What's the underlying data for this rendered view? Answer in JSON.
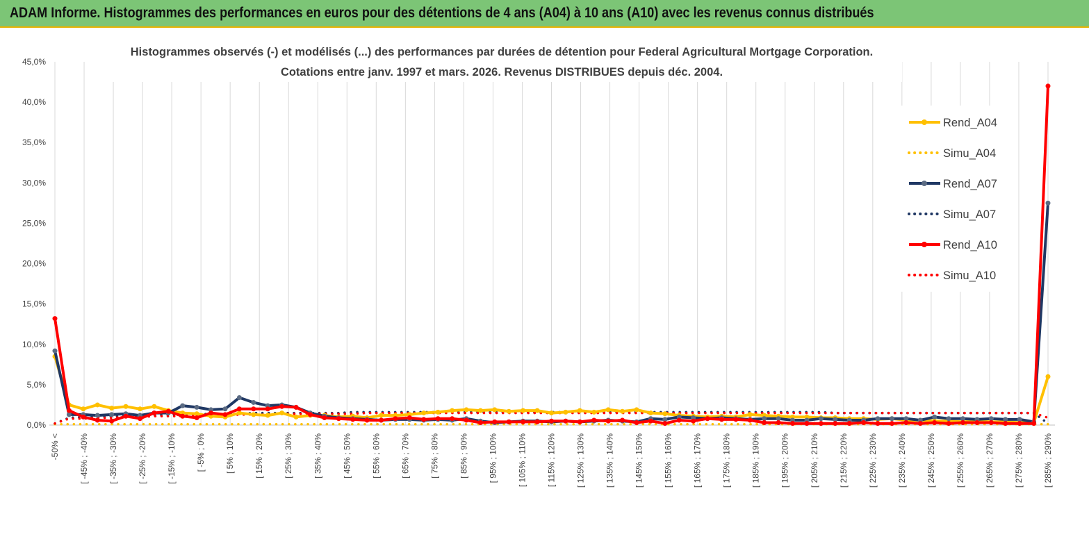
{
  "header": {
    "title": "ADAM Informe. Histogrammes des performances en euros pour des détentions de 4 ans (A04) à 10 ans (A10) avec les revenus connus distribués"
  },
  "colors": {
    "banner": "#7cc576",
    "banner_border": "#e8b100",
    "A04": "#ffc000",
    "A07": "#203864",
    "A10": "#ff0000"
  },
  "chart_data": {
    "type": "line",
    "title": [
      "Histogrammes observés (-) et modélisés (...) des performances par durées de détention pour Federal Agricultural Mortgage Corporation.",
      "Cotations entre janv. 1997 et mars. 2026. Revenus DISTRIBUES depuis déc. 2004."
    ],
    "ylim": [
      0,
      45
    ],
    "y_ticks": [
      "0,0%",
      "5,0%",
      "10,0%",
      "15,0%",
      "20,0%",
      "25,0%",
      "30,0%",
      "35,0%",
      "40,0%",
      "45,0%"
    ],
    "grid": "vertical",
    "legend_position": "right",
    "x_labels": [
      "-50% <",
      "[ -45% ; -40%",
      "[ -35% ; -30%",
      "[ -25% ; -20%",
      "[ -15% ; -10%",
      "[ -5% ; 0%",
      "[ 5% ; 10%",
      "[ 15% ; 20%",
      "[ 25% ; 30%",
      "[ 35% ; 40%",
      "[ 45% ; 50%",
      "[ 55% ; 60%",
      "[ 65% ; 70%",
      "[ 75% ; 80%",
      "[ 85% ; 90%",
      "[ 95% ; 100%",
      "[ 105% ; 110%",
      "[ 115% ; 120%",
      "[ 125% ; 130%",
      "[ 135% ; 140%",
      "[ 145% ; 150%",
      "[ 155% ; 160%",
      "[ 165% ; 170%",
      "[ 175% ; 180%",
      "[ 185% ; 190%",
      "[ 195% ; 200%",
      "[ 205% ; 210%",
      "[ 215% ; 220%",
      "[ 225% ; 230%",
      "[ 235% ; 240%",
      "[ 245% ; 250%",
      "[ 255% ; 260%",
      "[ 265% ; 270%",
      "[ 275% ; 280%",
      "[ 285% ; 290%"
    ],
    "series": [
      {
        "name": "Rend_A04",
        "style": "solid",
        "values": [
          8.5,
          2.5,
          2.0,
          2.5,
          2.1,
          2.3,
          2.0,
          2.3,
          1.8,
          1.5,
          1.4,
          1.1,
          1.0,
          1.5,
          1.3,
          1.2,
          1.5,
          1.0,
          1.2,
          1.2,
          1.0,
          1.1,
          0.9,
          1.2,
          1.2,
          1.3,
          1.5,
          1.6,
          1.8,
          1.9,
          1.8,
          1.9,
          1.7,
          1.8,
          1.8,
          1.5,
          1.6,
          1.8,
          1.6,
          1.9,
          1.7,
          1.9,
          1.5,
          1.4,
          1.2,
          1.1,
          1.0,
          1.1,
          1.0,
          1.3,
          1.2,
          1.1,
          1.0,
          1.0,
          0.9,
          0.9,
          0.8,
          0.8,
          0.7,
          0.8,
          0.6,
          0.6,
          0.5,
          0.5,
          0.4,
          0.5,
          0.4,
          0.4,
          0.3,
          0.3,
          6.0
        ]
      },
      {
        "name": "Simu_A04",
        "style": "dotted",
        "values": [
          0.1,
          0.1,
          0.1,
          0.1,
          0.1,
          0.1,
          0.1,
          0.1,
          0.1,
          0.1,
          0.1,
          0.1,
          0.1,
          0.1,
          0.1,
          0.1,
          0.1,
          0.1,
          0.1,
          0.1,
          0.1,
          0.1,
          0.1,
          0.1,
          0.1,
          0.1,
          0.1,
          0.1,
          0.1,
          0.1,
          0.1,
          0.1,
          0.1,
          0.1,
          0.1,
          0.1,
          0.1,
          0.1,
          0.1,
          0.1,
          0.1,
          0.1,
          0.1,
          0.1,
          0.1,
          0.1,
          0.1,
          0.1,
          0.1,
          0.1,
          0.1,
          0.1,
          0.1,
          0.1,
          0.1,
          0.1,
          0.1,
          0.1,
          0.1,
          0.1,
          0.1,
          0.1,
          0.1,
          0.1,
          0.1,
          0.1,
          0.1,
          0.1,
          0.1,
          0.1,
          0.1
        ]
      },
      {
        "name": "Rend_A07",
        "style": "solid",
        "values": [
          9.2,
          1.3,
          1.3,
          1.2,
          1.3,
          1.4,
          1.2,
          1.5,
          1.5,
          2.4,
          2.2,
          1.9,
          2.0,
          3.4,
          2.8,
          2.4,
          2.5,
          2.2,
          1.5,
          1.1,
          0.9,
          0.8,
          0.7,
          0.6,
          0.7,
          0.7,
          0.6,
          0.7,
          0.6,
          0.8,
          0.5,
          0.3,
          0.4,
          0.5,
          0.5,
          0.4,
          0.5,
          0.4,
          0.5,
          0.6,
          0.5,
          0.4,
          0.8,
          0.7,
          1.0,
          0.9,
          0.8,
          0.9,
          0.8,
          0.7,
          0.8,
          0.8,
          0.6,
          0.6,
          0.8,
          0.7,
          0.6,
          0.6,
          0.8,
          0.8,
          0.8,
          0.6,
          1.0,
          0.8,
          0.8,
          0.7,
          0.8,
          0.7,
          0.7,
          0.4,
          27.5
        ]
      },
      {
        "name": "Simu_A07",
        "style": "dotted",
        "values": [
          0.2,
          0.9,
          1.0,
          1.0,
          1.1,
          1.1,
          1.2,
          1.2,
          1.3,
          1.3,
          1.3,
          1.4,
          1.4,
          1.4,
          1.5,
          1.5,
          1.5,
          1.5,
          1.5,
          1.5,
          1.5,
          1.6,
          1.6,
          1.6,
          1.6,
          1.6,
          1.6,
          1.6,
          1.6,
          1.6,
          1.6,
          1.6,
          1.6,
          1.6,
          1.6,
          1.6,
          1.6,
          1.6,
          1.6,
          1.6,
          1.6,
          1.6,
          1.6,
          1.6,
          1.6,
          1.6,
          1.6,
          1.6,
          1.6,
          1.6,
          1.6,
          1.6,
          1.6,
          1.6,
          1.6,
          1.5,
          1.5,
          1.5,
          1.5,
          1.5,
          1.5,
          1.5,
          1.5,
          1.5,
          1.5,
          1.5,
          1.5,
          1.5,
          1.5,
          1.5,
          0.2
        ]
      },
      {
        "name": "Rend_A10",
        "style": "solid",
        "values": [
          13.2,
          1.8,
          1.0,
          0.6,
          0.5,
          1.1,
          0.8,
          1.5,
          1.7,
          1.1,
          0.9,
          1.5,
          1.3,
          2.0,
          2.0,
          2.0,
          2.3,
          2.2,
          1.3,
          0.9,
          0.8,
          0.7,
          0.6,
          0.6,
          0.8,
          0.9,
          0.7,
          0.8,
          0.8,
          0.6,
          0.3,
          0.4,
          0.4,
          0.4,
          0.4,
          0.5,
          0.5,
          0.4,
          0.6,
          0.5,
          0.6,
          0.3,
          0.5,
          0.2,
          0.6,
          0.5,
          0.8,
          0.7,
          0.7,
          0.6,
          0.3,
          0.3,
          0.2,
          0.2,
          0.2,
          0.2,
          0.2,
          0.3,
          0.2,
          0.2,
          0.3,
          0.2,
          0.3,
          0.2,
          0.3,
          0.3,
          0.3,
          0.2,
          0.2,
          0.2,
          42.0
        ]
      },
      {
        "name": "Simu_A10",
        "style": "dotted",
        "values": [
          0.2,
          0.8,
          0.8,
          0.9,
          0.9,
          1.0,
          1.0,
          1.1,
          1.1,
          1.1,
          1.2,
          1.2,
          1.2,
          1.3,
          1.3,
          1.3,
          1.4,
          1.4,
          1.4,
          1.4,
          1.4,
          1.4,
          1.5,
          1.5,
          1.5,
          1.5,
          1.5,
          1.5,
          1.5,
          1.5,
          1.5,
          1.5,
          1.5,
          1.5,
          1.5,
          1.5,
          1.5,
          1.5,
          1.5,
          1.5,
          1.5,
          1.5,
          1.5,
          1.5,
          1.5,
          1.5,
          1.5,
          1.5,
          1.5,
          1.5,
          1.5,
          1.5,
          1.5,
          1.5,
          1.5,
          1.5,
          1.5,
          1.5,
          1.5,
          1.5,
          1.5,
          1.5,
          1.5,
          1.5,
          1.5,
          1.5,
          1.5,
          1.5,
          1.5,
          1.5,
          0.9
        ]
      }
    ]
  }
}
